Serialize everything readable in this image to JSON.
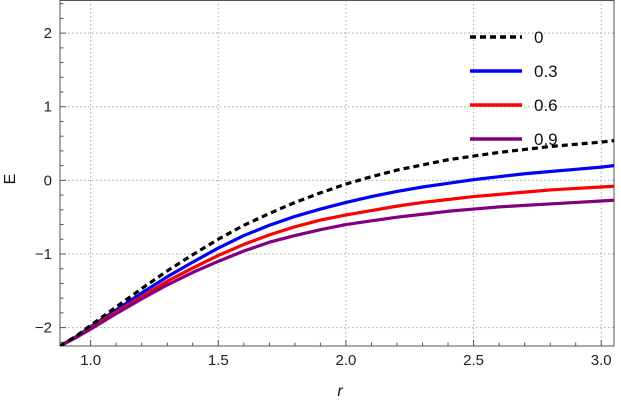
{
  "chart_data": {
    "type": "line",
    "title": "",
    "xlabel": "r",
    "ylabel": "E",
    "xlim": [
      0.88,
      3.05
    ],
    "ylim": [
      -2.25,
      2.45
    ],
    "x_ticks": [
      1.0,
      1.5,
      2.0,
      2.5,
      3.0
    ],
    "x_tick_labels": [
      "1.0",
      "1.5",
      "2.0",
      "2.5",
      "3.0"
    ],
    "y_ticks": [
      -2,
      -1,
      0,
      1,
      2
    ],
    "y_tick_labels": [
      "−2",
      "−1",
      "0",
      "1",
      "2"
    ],
    "grid": true,
    "legend_position": "top-right",
    "x": [
      0.88,
      0.95,
      1.0,
      1.1,
      1.2,
      1.3,
      1.4,
      1.5,
      1.6,
      1.7,
      1.8,
      1.9,
      2.0,
      2.1,
      2.2,
      2.3,
      2.4,
      2.5,
      2.6,
      2.7,
      2.8,
      2.9,
      3.0,
      3.05
    ],
    "series": [
      {
        "name": "0",
        "color": "#000000",
        "dash": true,
        "values": [
          -2.25,
          -2.1,
          -1.97,
          -1.72,
          -1.47,
          -1.23,
          -1.01,
          -0.8,
          -0.61,
          -0.45,
          -0.3,
          -0.17,
          -0.05,
          0.05,
          0.14,
          0.21,
          0.28,
          0.33,
          0.38,
          0.42,
          0.46,
          0.49,
          0.52,
          0.54
        ]
      },
      {
        "name": "0.3",
        "color": "#0000ff",
        "dash": false,
        "values": [
          -2.25,
          -2.11,
          -1.99,
          -1.76,
          -1.53,
          -1.31,
          -1.11,
          -0.92,
          -0.75,
          -0.61,
          -0.49,
          -0.39,
          -0.3,
          -0.22,
          -0.15,
          -0.09,
          -0.04,
          0.01,
          0.05,
          0.09,
          0.12,
          0.15,
          0.18,
          0.2
        ]
      },
      {
        "name": "0.6",
        "color": "#ff0000",
        "dash": false,
        "values": [
          -2.25,
          -2.12,
          -2.0,
          -1.79,
          -1.58,
          -1.37,
          -1.19,
          -1.02,
          -0.87,
          -0.74,
          -0.63,
          -0.54,
          -0.47,
          -0.41,
          -0.35,
          -0.3,
          -0.26,
          -0.22,
          -0.19,
          -0.16,
          -0.13,
          -0.11,
          -0.09,
          -0.08
        ]
      },
      {
        "name": "0.9",
        "color": "#800080",
        "dash": false,
        "values": [
          -2.25,
          -2.12,
          -2.02,
          -1.81,
          -1.61,
          -1.42,
          -1.25,
          -1.1,
          -0.96,
          -0.84,
          -0.75,
          -0.67,
          -0.6,
          -0.55,
          -0.5,
          -0.46,
          -0.42,
          -0.39,
          -0.36,
          -0.34,
          -0.32,
          -0.3,
          -0.28,
          -0.27
        ]
      }
    ]
  }
}
